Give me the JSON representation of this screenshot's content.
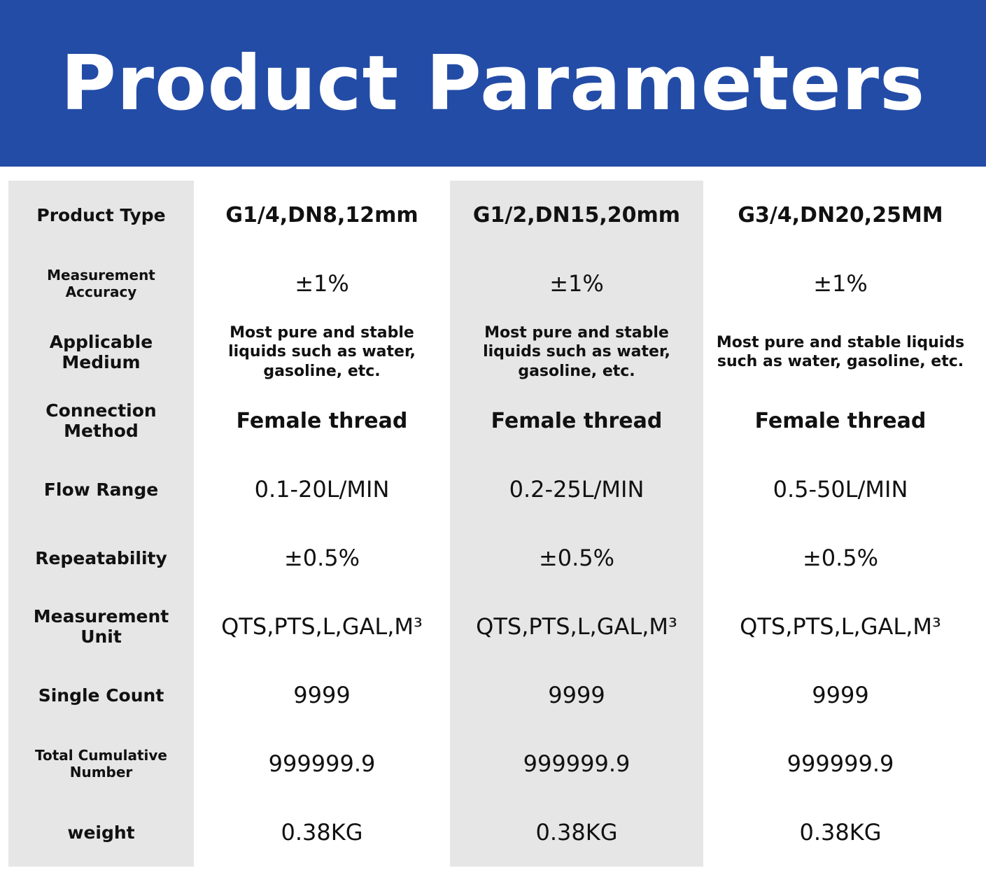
{
  "header": {
    "title": "Product Parameters"
  },
  "table": {
    "rows": [
      [
        "Product Type",
        "G1/4,DN8,12mm",
        "G1/2,DN15,20mm",
        "G3/4,DN20,25MM"
      ],
      [
        "Measurement Accuracy",
        "±1%",
        "±1%",
        "±1%"
      ],
      [
        "Applicable Medium",
        "Most pure and stable liquids such as water, gasoline, etc.",
        "Most pure and stable liquids such as water, gasoline, etc.",
        "Most pure and stable liquids such as water, gasoline, etc."
      ],
      [
        "Connection Method",
        "Female thread",
        "Female thread",
        "Female thread"
      ],
      [
        "Flow Range",
        "0.1-20L/MIN",
        "0.2-25L/MIN",
        "0.5-50L/MIN"
      ],
      [
        "Repeatability",
        "±0.5%",
        "±0.5%",
        "±0.5%"
      ],
      [
        "Measurement Unit",
        "QTS,PTS,L,GAL,M³",
        "QTS,PTS,L,GAL,M³",
        "QTS,PTS,L,GAL,M³"
      ],
      [
        "Single Count",
        "9999",
        "9999",
        "9999"
      ],
      [
        "Total Cumulative Number",
        "999999.9",
        "999999.9",
        "999999.9"
      ],
      [
        "weight",
        "0.38KG",
        "0.38KG",
        "0.38KG"
      ]
    ]
  }
}
